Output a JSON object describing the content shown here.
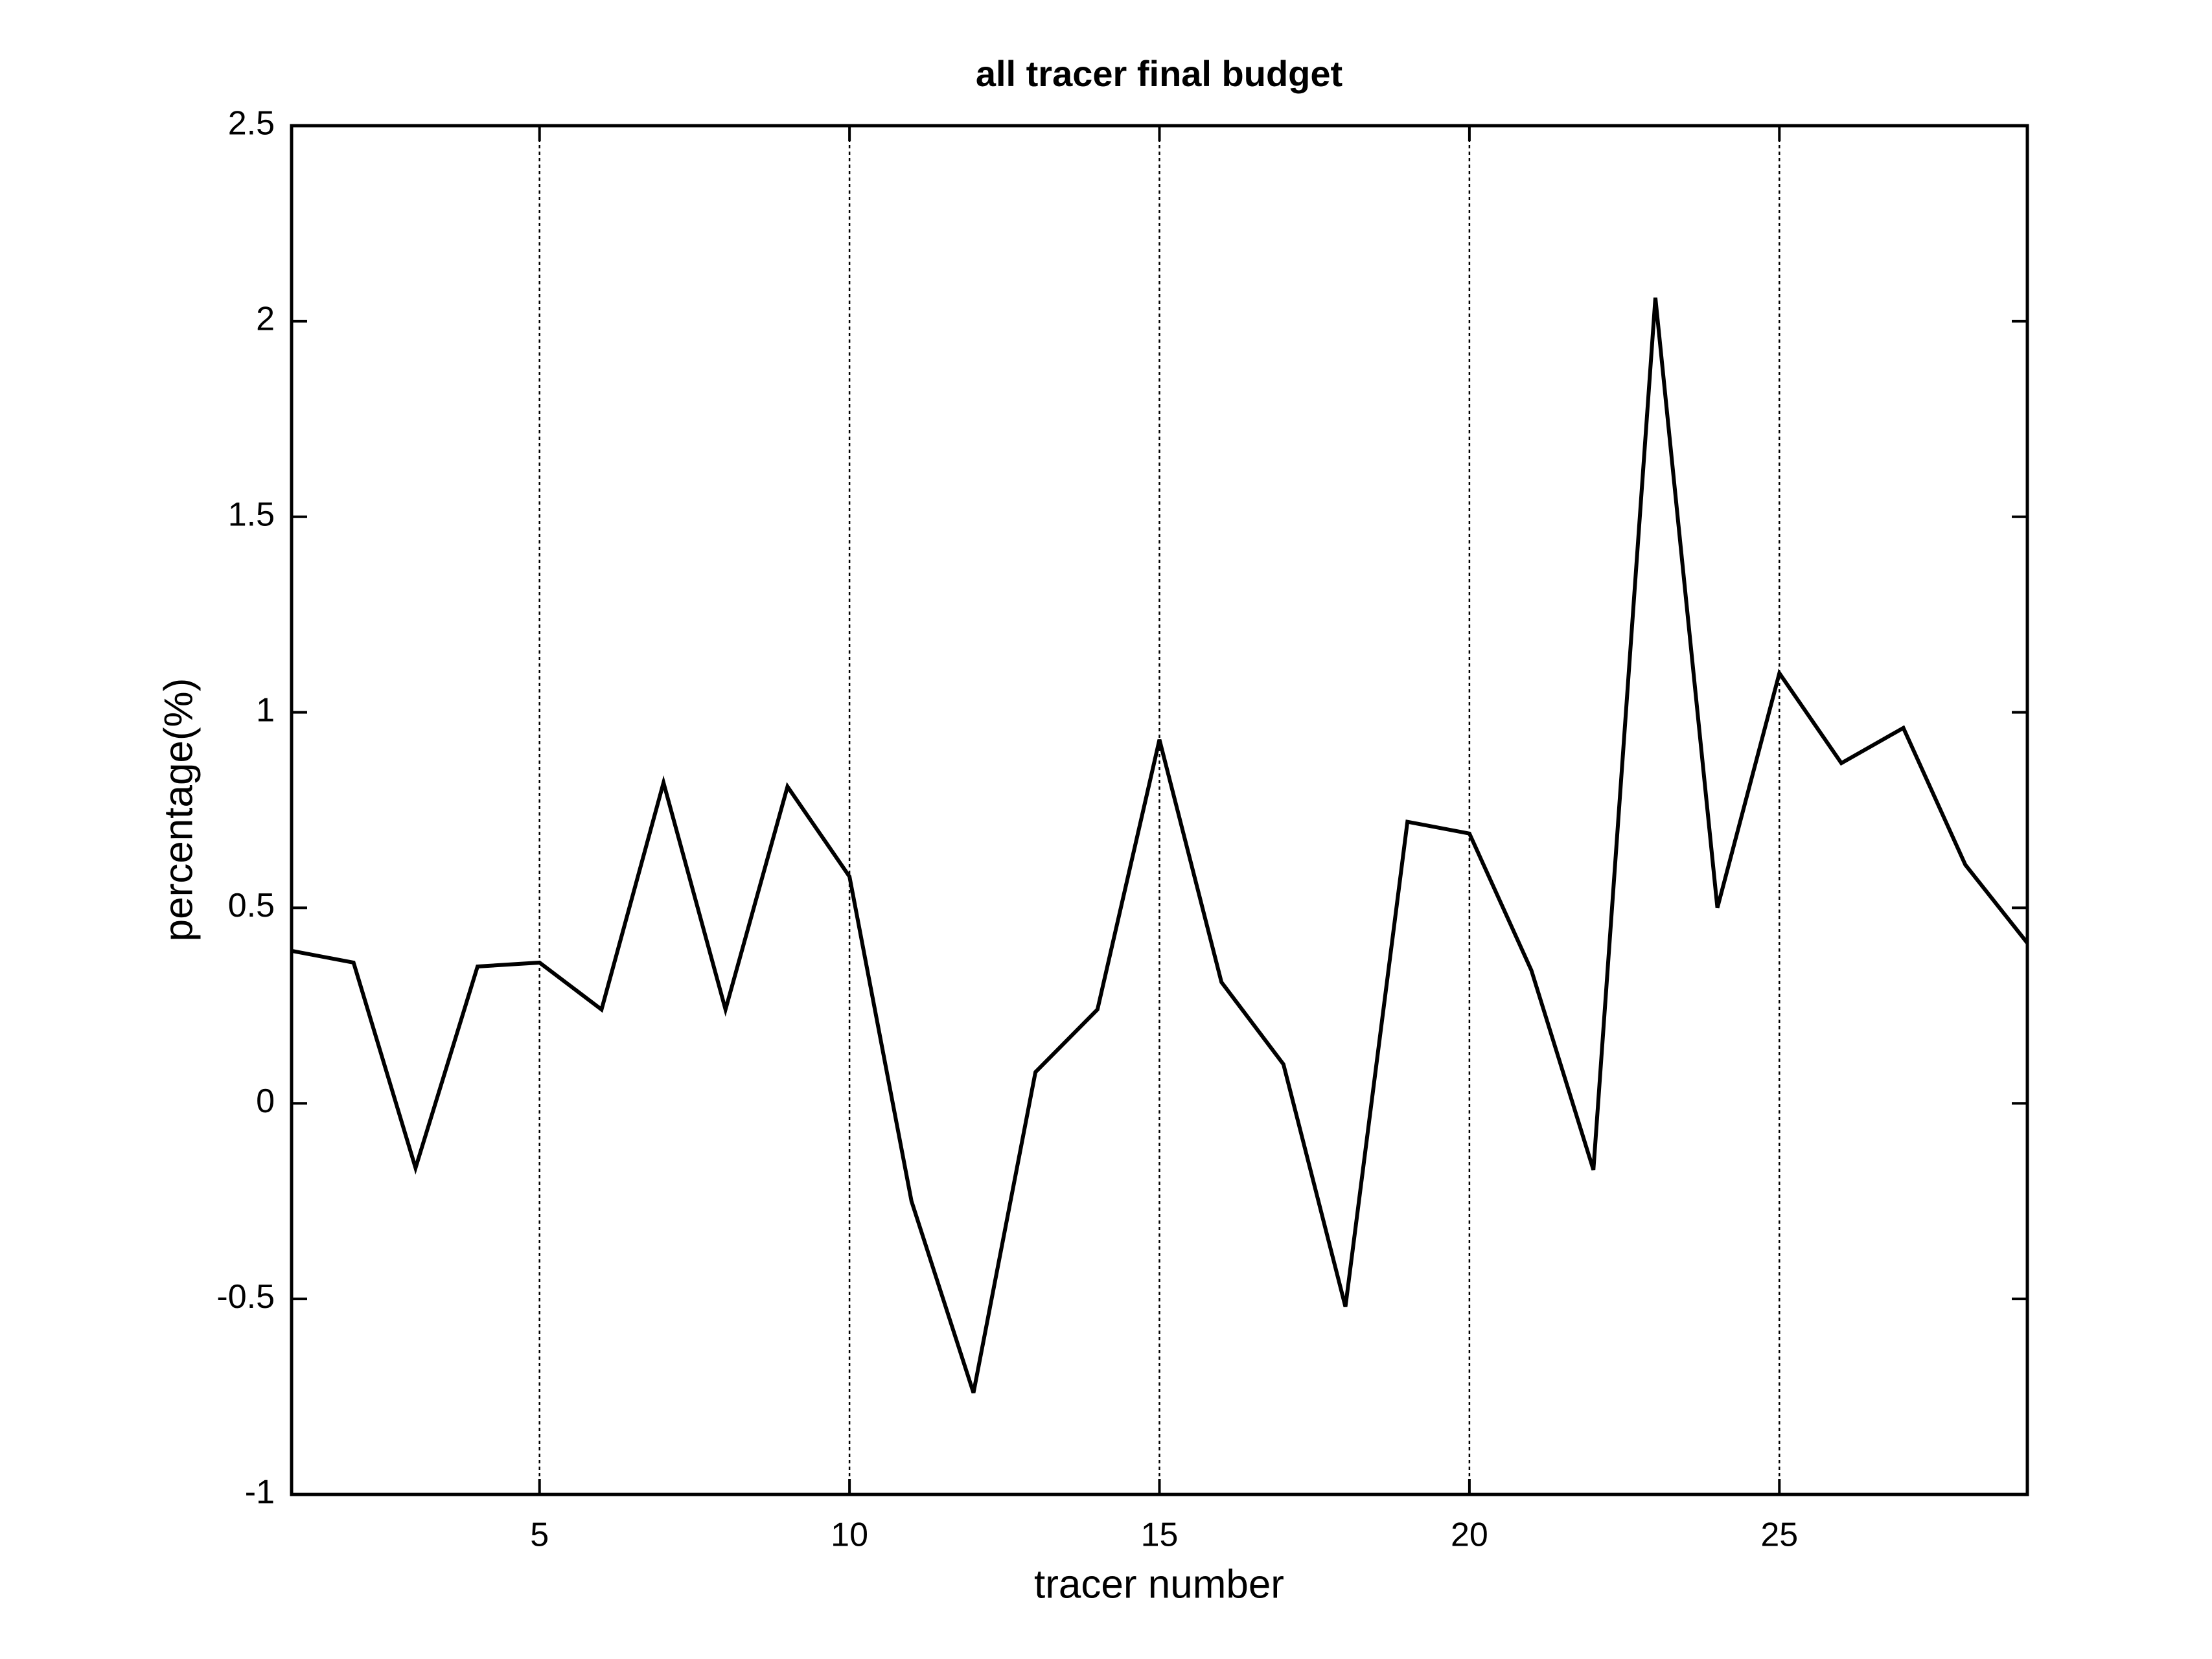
{
  "chart_data": {
    "type": "line",
    "title": "all tracer final budget",
    "xlabel": "tracer number",
    "ylabel": "percentage(%)",
    "x": [
      1,
      2,
      3,
      4,
      5,
      6,
      7,
      8,
      9,
      10,
      11,
      12,
      13,
      14,
      15,
      16,
      17,
      18,
      19,
      20,
      21,
      22,
      23,
      24,
      25,
      26,
      27,
      28,
      29
    ],
    "series": [
      {
        "color": "#000000",
        "values": [
          0.39,
          0.36,
          -0.165,
          0.35,
          0.36,
          0.24,
          0.82,
          0.24,
          0.81,
          0.58,
          -0.25,
          -0.74,
          0.08,
          0.24,
          0.93,
          0.31,
          0.1,
          -0.52,
          0.72,
          0.69,
          0.34,
          -0.17,
          2.06,
          0.5,
          1.1,
          0.87,
          0.96,
          0.61,
          0.41
        ]
      }
    ],
    "xlim": [
      1,
      29
    ],
    "xticks": [
      5,
      10,
      15,
      20,
      25
    ],
    "ylim": [
      -1,
      2.5
    ],
    "yticks": [
      -1,
      -0.5,
      0,
      0.5,
      1,
      1.5,
      2,
      2.5
    ],
    "grid": "x"
  }
}
